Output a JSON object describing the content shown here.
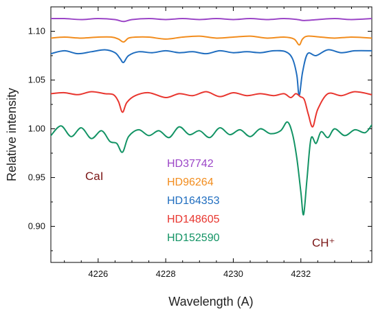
{
  "chart_data": {
    "type": "line",
    "xlabel": "Wavelength (A)",
    "ylabel": "Relative intensity",
    "xlim": [
      4224.6,
      4234.1
    ],
    "ylim": [
      0.863,
      1.125
    ],
    "x_ticks": [
      4226,
      4228,
      4230,
      4232
    ],
    "x_tick_labels": [
      "4226",
      "4228",
      "4230",
      "4232"
    ],
    "y_ticks": [
      0.9,
      0.95,
      1.0,
      1.05,
      1.1
    ],
    "y_tick_labels": [
      "0.90",
      "0.95",
      "1.00",
      "1.05",
      "1.10"
    ],
    "grid": false,
    "legend_placement": "center",
    "series": [
      {
        "name": "HD37742",
        "color": "#9b45c7",
        "x": [
          4224.6,
          4225.0,
          4225.5,
          4226.0,
          4226.5,
          4226.75,
          4227.0,
          4227.5,
          4228.0,
          4228.5,
          4229.0,
          4229.5,
          4230.0,
          4230.5,
          4231.0,
          4231.5,
          4231.9,
          4232.1,
          4232.5,
          4233.0,
          4233.5,
          4234.1
        ],
        "y": [
          1.113,
          1.113,
          1.112,
          1.113,
          1.112,
          1.11,
          1.112,
          1.113,
          1.112,
          1.113,
          1.112,
          1.113,
          1.112,
          1.113,
          1.112,
          1.113,
          1.112,
          1.111,
          1.112,
          1.113,
          1.112,
          1.113
        ]
      },
      {
        "name": "HD96264",
        "color": "#f28c1c",
        "x": [
          4224.6,
          4225.0,
          4225.5,
          4226.0,
          4226.4,
          4226.6,
          4226.75,
          4226.9,
          4227.1,
          4227.5,
          4228.0,
          4228.5,
          4229.0,
          4229.5,
          4230.0,
          4230.5,
          4231.0,
          4231.5,
          4231.8,
          4231.95,
          4232.05,
          4232.2,
          4232.6,
          4233.0,
          4233.5,
          4234.1
        ],
        "y": [
          1.093,
          1.094,
          1.093,
          1.094,
          1.094,
          1.092,
          1.089,
          1.093,
          1.094,
          1.094,
          1.092,
          1.094,
          1.095,
          1.093,
          1.094,
          1.095,
          1.093,
          1.094,
          1.092,
          1.086,
          1.092,
          1.095,
          1.094,
          1.093,
          1.094,
          1.093
        ]
      },
      {
        "name": "HD164353",
        "color": "#1f6dbf",
        "x": [
          4224.6,
          4225.0,
          4225.4,
          4225.8,
          4226.2,
          4226.5,
          4226.65,
          4226.75,
          4226.9,
          4227.2,
          4227.6,
          4228.0,
          4228.4,
          4228.8,
          4229.2,
          4229.6,
          4230.0,
          4230.4,
          4230.8,
          4231.2,
          4231.55,
          4231.75,
          4231.88,
          4231.95,
          4232.05,
          4232.2,
          4232.45,
          4232.8,
          4233.2,
          4233.6,
          4234.1
        ],
        "y": [
          1.077,
          1.08,
          1.077,
          1.079,
          1.081,
          1.078,
          1.072,
          1.068,
          1.075,
          1.079,
          1.078,
          1.08,
          1.078,
          1.079,
          1.077,
          1.08,
          1.078,
          1.079,
          1.078,
          1.08,
          1.079,
          1.072,
          1.055,
          1.034,
          1.058,
          1.077,
          1.075,
          1.081,
          1.078,
          1.08,
          1.08
        ]
      },
      {
        "name": "HD148605",
        "color": "#e8352e",
        "x": [
          4224.6,
          4225.0,
          4225.4,
          4225.8,
          4226.2,
          4226.45,
          4226.6,
          4226.72,
          4226.85,
          4227.1,
          4227.5,
          4228.0,
          4228.4,
          4228.8,
          4229.2,
          4229.6,
          4230.0,
          4230.4,
          4230.8,
          4231.2,
          4231.5,
          4231.7,
          4231.85,
          4231.98,
          4232.1,
          4232.22,
          4232.35,
          4232.5,
          4232.8,
          4233.2,
          4233.6,
          4234.1
        ],
        "y": [
          1.036,
          1.037,
          1.035,
          1.038,
          1.036,
          1.035,
          1.028,
          1.017,
          1.027,
          1.034,
          1.037,
          1.032,
          1.036,
          1.034,
          1.038,
          1.033,
          1.037,
          1.034,
          1.036,
          1.034,
          1.036,
          1.032,
          1.036,
          1.033,
          1.03,
          1.015,
          1.002,
          1.02,
          1.036,
          1.034,
          1.038,
          1.035
        ]
      },
      {
        "name": "HD152590",
        "color": "#129364",
        "x": [
          4224.6,
          4224.9,
          4225.2,
          4225.5,
          4225.8,
          4226.1,
          4226.35,
          4226.55,
          4226.72,
          4226.9,
          4227.2,
          4227.5,
          4227.8,
          4228.1,
          4228.4,
          4228.7,
          4229.0,
          4229.3,
          4229.6,
          4229.9,
          4230.2,
          4230.5,
          4230.8,
          4231.1,
          4231.4,
          4231.6,
          4231.75,
          4231.88,
          4232.0,
          4232.08,
          4232.18,
          4232.3,
          4232.45,
          4232.6,
          4232.8,
          4233.0,
          4233.3,
          4233.6,
          4233.9,
          4234.1
        ],
        "y": [
          0.993,
          1.003,
          0.992,
          1.001,
          0.99,
          0.998,
          0.987,
          0.985,
          0.976,
          0.992,
          0.999,
          0.993,
          0.998,
          0.991,
          1.002,
          0.994,
          0.998,
          0.991,
          1.001,
          0.994,
          0.999,
          0.992,
          1.0,
          0.995,
          0.998,
          1.007,
          0.995,
          0.97,
          0.935,
          0.912,
          0.948,
          0.99,
          0.985,
          0.997,
          0.991,
          1.0,
          0.993,
          0.999,
          0.996,
          1.004
        ]
      }
    ],
    "legend": [
      {
        "label": "HD37742",
        "color": "#9b45c7"
      },
      {
        "label": "HD96264",
        "color": "#f28c1c"
      },
      {
        "label": "HD164353",
        "color": "#1f6dbf"
      },
      {
        "label": "HD148605",
        "color": "#e8352e"
      },
      {
        "label": "HD152590",
        "color": "#129364"
      }
    ],
    "annotations": [
      {
        "text": "CaI",
        "color": "#7a1515"
      },
      {
        "text": "CH⁺",
        "color": "#7a1515"
      }
    ]
  }
}
